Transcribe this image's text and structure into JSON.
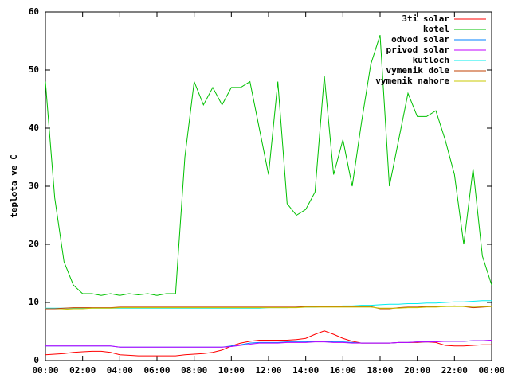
{
  "chart_data": {
    "type": "line",
    "y_label": "teplota ve C",
    "xlim": [
      0,
      24
    ],
    "xticks": [
      {
        "value": 0,
        "label": "00:00"
      },
      {
        "value": 2,
        "label": "02:00"
      },
      {
        "value": 4,
        "label": "04:00"
      },
      {
        "value": 6,
        "label": "06:00"
      },
      {
        "value": 8,
        "label": "08:00"
      },
      {
        "value": 10,
        "label": "10:00"
      },
      {
        "value": 12,
        "label": "12:00"
      },
      {
        "value": 14,
        "label": "14:00"
      },
      {
        "value": 16,
        "label": "16:00"
      },
      {
        "value": 18,
        "label": "18:00"
      },
      {
        "value": 20,
        "label": "20:00"
      },
      {
        "value": 22,
        "label": "22:00"
      },
      {
        "value": 24,
        "label": "00:00"
      }
    ],
    "ylim": [
      0,
      60
    ],
    "yticks": [
      0,
      10,
      20,
      30,
      40,
      50,
      60
    ],
    "grid": false,
    "legend": "top-right",
    "x": [
      0,
      0.5,
      1,
      1.5,
      2,
      2.5,
      3,
      3.5,
      4,
      4.5,
      5,
      5.5,
      6,
      6.5,
      7,
      7.5,
      8,
      8.5,
      9,
      9.5,
      10,
      10.5,
      11,
      11.5,
      12,
      12.5,
      13,
      13.5,
      14,
      14.5,
      15,
      15.5,
      16,
      16.5,
      17,
      17.5,
      18,
      18.5,
      19,
      19.5,
      20,
      20.5,
      21,
      21.5,
      22,
      22.5,
      23,
      23.5,
      24
    ],
    "series": [
      {
        "name": "3ti solar",
        "color": "#ff0000",
        "values": [
          1,
          1.1,
          1.2,
          1.4,
          1.5,
          1.6,
          1.6,
          1.4,
          1,
          0.9,
          0.8,
          0.8,
          0.8,
          0.8,
          0.8,
          1,
          1.1,
          1.2,
          1.4,
          1.8,
          2.5,
          3,
          3.3,
          3.5,
          3.5,
          3.5,
          3.5,
          3.6,
          3.8,
          4.5,
          5.1,
          4.5,
          3.8,
          3.3,
          3,
          3,
          3,
          3,
          3.1,
          3.1,
          3.1,
          3.2,
          3.1,
          2.6,
          2.5,
          2.5,
          2.6,
          2.7,
          2.7
        ]
      },
      {
        "name": "kotel",
        "color": "#00c000",
        "values": [
          48,
          28,
          17,
          13,
          11.5,
          11.5,
          11.2,
          11.5,
          11.2,
          11.5,
          11.3,
          11.5,
          11.2,
          11.5,
          11.5,
          35,
          48,
          44,
          47,
          44,
          47,
          47,
          48,
          40,
          32,
          48,
          27,
          25,
          26,
          29,
          49,
          32,
          38,
          30,
          41,
          51,
          56,
          30,
          38,
          46,
          42,
          42,
          43,
          38,
          32,
          20,
          33,
          18,
          13
        ]
      },
      {
        "name": "odvod solar",
        "color": "#0080ff",
        "values": [
          2.5,
          2.5,
          2.5,
          2.5,
          2.5,
          2.5,
          2.5,
          2.5,
          2.3,
          2.3,
          2.3,
          2.3,
          2.3,
          2.3,
          2.3,
          2.3,
          2.3,
          2.3,
          2.3,
          2.3,
          2.5,
          2.7,
          3,
          3.1,
          3.1,
          3.1,
          3.2,
          3.2,
          3.2,
          3.3,
          3.3,
          3.2,
          3.2,
          3.1,
          3,
          3,
          3,
          3,
          3.1,
          3.1,
          3.2,
          3.2,
          3.3,
          3.3,
          3.3,
          3.3,
          3.4,
          3.4,
          3.5
        ]
      },
      {
        "name": "privod solar",
        "color": "#c000ff",
        "values": [
          2.5,
          2.5,
          2.5,
          2.5,
          2.5,
          2.5,
          2.5,
          2.5,
          2.3,
          2.3,
          2.3,
          2.3,
          2.3,
          2.3,
          2.3,
          2.3,
          2.3,
          2.3,
          2.3,
          2.3,
          2.4,
          2.6,
          2.8,
          3,
          3,
          3,
          3.1,
          3.1,
          3.1,
          3.2,
          3.2,
          3.1,
          3.1,
          3,
          3,
          3,
          3,
          3,
          3.1,
          3.1,
          3.2,
          3.2,
          3.2,
          3.3,
          3.3,
          3.3,
          3.4,
          3.4,
          3.5
        ]
      },
      {
        "name": "kutloch",
        "color": "#00eeee",
        "values": [
          9,
          9,
          9,
          9,
          9,
          9,
          9,
          9,
          9,
          9,
          9,
          9,
          9,
          9,
          9,
          9,
          9,
          9,
          9,
          9,
          9,
          9,
          9,
          9,
          9.1,
          9.1,
          9.1,
          9.2,
          9.2,
          9.2,
          9.3,
          9.3,
          9.4,
          9.4,
          9.5,
          9.5,
          9.6,
          9.7,
          9.7,
          9.8,
          9.8,
          9.9,
          9.9,
          10,
          10.1,
          10.1,
          10.2,
          10.3,
          10.3
        ]
      },
      {
        "name": "vymenik dole",
        "color": "#c04000",
        "values": [
          8.9,
          8.9,
          9,
          9.1,
          9.1,
          9.1,
          9.1,
          9.1,
          9.2,
          9.2,
          9.2,
          9.2,
          9.2,
          9.2,
          9.2,
          9.2,
          9.2,
          9.2,
          9.2,
          9.2,
          9.2,
          9.2,
          9.2,
          9.2,
          9.2,
          9.2,
          9.2,
          9.2,
          9.3,
          9.3,
          9.3,
          9.3,
          9.3,
          9.3,
          9.3,
          9.3,
          8.9,
          8.9,
          9.1,
          9.2,
          9.2,
          9.3,
          9.3,
          9.3,
          9.4,
          9.3,
          9.1,
          9.2,
          9.3
        ]
      },
      {
        "name": "vymenik nahore",
        "color": "#c8c800",
        "values": [
          8.7,
          8.7,
          8.8,
          8.9,
          8.9,
          9,
          9,
          9,
          9.1,
          9.1,
          9.1,
          9.1,
          9.1,
          9.1,
          9.1,
          9.1,
          9.1,
          9.1,
          9.1,
          9.1,
          9.1,
          9.1,
          9.1,
          9.1,
          9.1,
          9.1,
          9.1,
          9.1,
          9.2,
          9.2,
          9.2,
          9.2,
          9.2,
          9.2,
          9.2,
          9.2,
          9,
          9,
          9,
          9.1,
          9.1,
          9.2,
          9.2,
          9.3,
          9.3,
          9.3,
          9.3,
          9.3,
          9.3
        ]
      }
    ]
  }
}
